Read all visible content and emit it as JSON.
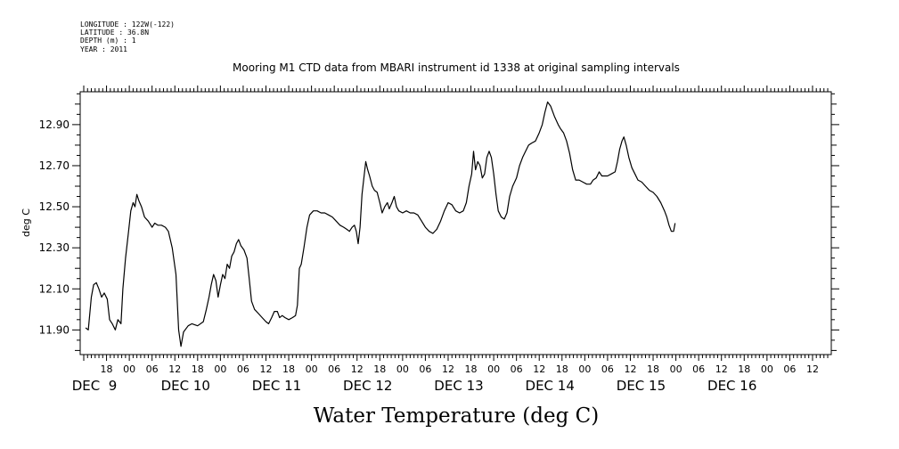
{
  "meta": {
    "longitude": "LONGITUDE : 122W(-122)",
    "latitude": "LATITUDE : 36.8N",
    "depth": "DEPTH (m) : 1",
    "year": "YEAR : 2011"
  },
  "chart_data": {
    "type": "line",
    "title": "Mooring M1 CTD data from MBARI instrument id 1338 at original sampling intervals",
    "ylabel": "deg C",
    "xlabel": "Water Temperature (deg C)",
    "x_unit": "hours since DEC 8 12:00, 2011",
    "xlim": [
      0,
      196
    ],
    "ylim": [
      11.78,
      13.06
    ],
    "yticks": [
      11.9,
      12.1,
      12.3,
      12.5,
      12.7,
      12.9
    ],
    "ytick_labels": [
      "11.90",
      "12.10",
      "12.30",
      "12.50",
      "12.70",
      "12.90"
    ],
    "hour_ticks": [
      {
        "x": 6,
        "label": "18"
      },
      {
        "x": 12,
        "label": "00"
      },
      {
        "x": 18,
        "label": "06"
      },
      {
        "x": 24,
        "label": "12"
      },
      {
        "x": 30,
        "label": "18"
      },
      {
        "x": 36,
        "label": "00"
      },
      {
        "x": 42,
        "label": "06"
      },
      {
        "x": 48,
        "label": "12"
      },
      {
        "x": 54,
        "label": "18"
      },
      {
        "x": 60,
        "label": "00"
      },
      {
        "x": 66,
        "label": "06"
      },
      {
        "x": 72,
        "label": "12"
      },
      {
        "x": 78,
        "label": "18"
      },
      {
        "x": 84,
        "label": "00"
      },
      {
        "x": 90,
        "label": "06"
      },
      {
        "x": 96,
        "label": "12"
      },
      {
        "x": 102,
        "label": "18"
      },
      {
        "x": 108,
        "label": "00"
      },
      {
        "x": 114,
        "label": "06"
      },
      {
        "x": 120,
        "label": "12"
      },
      {
        "x": 126,
        "label": "18"
      },
      {
        "x": 132,
        "label": "00"
      },
      {
        "x": 138,
        "label": "06"
      },
      {
        "x": 144,
        "label": "12"
      },
      {
        "x": 150,
        "label": "18"
      },
      {
        "x": 156,
        "label": "00"
      },
      {
        "x": 162,
        "label": "06"
      },
      {
        "x": 168,
        "label": "12"
      },
      {
        "x": 174,
        "label": "18"
      },
      {
        "x": 180,
        "label": "00"
      },
      {
        "x": 186,
        "label": "06"
      },
      {
        "x": 192,
        "label": "12"
      }
    ],
    "day_labels": [
      {
        "x": 0,
        "label": "DEC  9"
      },
      {
        "x": 24,
        "label": "DEC 10"
      },
      {
        "x": 48,
        "label": "DEC 11"
      },
      {
        "x": 72,
        "label": "DEC 12"
      },
      {
        "x": 96,
        "label": "DEC 13"
      },
      {
        "x": 120,
        "label": "DEC 14"
      },
      {
        "x": 144,
        "label": "DEC 15"
      },
      {
        "x": 168,
        "label": "DEC 16"
      }
    ],
    "series": [
      {
        "points": [
          [
            0.5,
            11.91
          ],
          [
            1.2,
            11.9
          ],
          [
            2,
            12.06
          ],
          [
            2.6,
            12.12
          ],
          [
            3.3,
            12.13
          ],
          [
            4,
            12.1
          ],
          [
            4.7,
            12.06
          ],
          [
            5.4,
            12.08
          ],
          [
            6.2,
            12.05
          ],
          [
            6.8,
            11.95
          ],
          [
            7.5,
            11.93
          ],
          [
            8.3,
            11.9
          ],
          [
            9,
            11.95
          ],
          [
            9.8,
            11.93
          ],
          [
            10.3,
            12.1
          ],
          [
            11,
            12.25
          ],
          [
            11.8,
            12.38
          ],
          [
            12.4,
            12.48
          ],
          [
            13,
            12.52
          ],
          [
            13.5,
            12.5
          ],
          [
            14,
            12.56
          ],
          [
            14.5,
            12.53
          ],
          [
            15.2,
            12.5
          ],
          [
            16,
            12.45
          ],
          [
            17,
            12.43
          ],
          [
            18,
            12.4
          ],
          [
            18.7,
            12.42
          ],
          [
            19.5,
            12.41
          ],
          [
            20.5,
            12.41
          ],
          [
            21.5,
            12.4
          ],
          [
            22.3,
            12.38
          ],
          [
            23.3,
            12.3
          ],
          [
            24.3,
            12.17
          ],
          [
            25,
            11.9
          ],
          [
            25.6,
            11.82
          ],
          [
            26.3,
            11.89
          ],
          [
            27.5,
            11.92
          ],
          [
            28.5,
            11.93
          ],
          [
            30,
            11.92
          ],
          [
            31.5,
            11.94
          ],
          [
            32.3,
            12
          ],
          [
            33,
            12.06
          ],
          [
            33.6,
            12.12
          ],
          [
            34.2,
            12.17
          ],
          [
            34.8,
            12.14
          ],
          [
            35.4,
            12.06
          ],
          [
            36,
            12.12
          ],
          [
            36.6,
            12.17
          ],
          [
            37.2,
            12.15
          ],
          [
            37.8,
            12.22
          ],
          [
            38.4,
            12.2
          ],
          [
            39,
            12.26
          ],
          [
            39.6,
            12.28
          ],
          [
            40.2,
            12.32
          ],
          [
            40.8,
            12.34
          ],
          [
            41.4,
            12.31
          ],
          [
            42.2,
            12.29
          ],
          [
            43,
            12.25
          ],
          [
            43.6,
            12.15
          ],
          [
            44.2,
            12.04
          ],
          [
            45,
            12
          ],
          [
            46,
            11.98
          ],
          [
            47,
            11.96
          ],
          [
            48,
            11.94
          ],
          [
            48.7,
            11.93
          ],
          [
            49.5,
            11.96
          ],
          [
            50.2,
            11.99
          ],
          [
            51,
            11.99
          ],
          [
            51.6,
            11.96
          ],
          [
            52.3,
            11.97
          ],
          [
            53,
            11.96
          ],
          [
            54,
            11.95
          ],
          [
            55,
            11.96
          ],
          [
            55.8,
            11.97
          ],
          [
            56.3,
            12.02
          ],
          [
            56.8,
            12.2
          ],
          [
            57.3,
            12.22
          ],
          [
            58,
            12.3
          ],
          [
            58.8,
            12.4
          ],
          [
            59.5,
            12.46
          ],
          [
            60.5,
            12.48
          ],
          [
            61.5,
            12.48
          ],
          [
            62.5,
            12.47
          ],
          [
            63.5,
            12.47
          ],
          [
            64.5,
            12.46
          ],
          [
            65.5,
            12.45
          ],
          [
            66.5,
            12.43
          ],
          [
            67.5,
            12.41
          ],
          [
            68.5,
            12.4
          ],
          [
            69.3,
            12.39
          ],
          [
            70,
            12.38
          ],
          [
            70.7,
            12.4
          ],
          [
            71.3,
            12.41
          ],
          [
            71.8,
            12.38
          ],
          [
            72.3,
            12.32
          ],
          [
            72.8,
            12.4
          ],
          [
            73.3,
            12.56
          ],
          [
            73.8,
            12.64
          ],
          [
            74.3,
            12.72
          ],
          [
            74.8,
            12.68
          ],
          [
            75.3,
            12.65
          ],
          [
            76,
            12.6
          ],
          [
            76.6,
            12.58
          ],
          [
            77.3,
            12.57
          ],
          [
            78,
            12.52
          ],
          [
            78.6,
            12.47
          ],
          [
            79.3,
            12.5
          ],
          [
            80,
            12.52
          ],
          [
            80.5,
            12.49
          ],
          [
            81.2,
            12.52
          ],
          [
            81.8,
            12.55
          ],
          [
            82.4,
            12.5
          ],
          [
            83,
            12.48
          ],
          [
            84,
            12.47
          ],
          [
            85,
            12.48
          ],
          [
            86,
            12.47
          ],
          [
            87,
            12.47
          ],
          [
            88,
            12.46
          ],
          [
            89,
            12.43
          ],
          [
            90,
            12.4
          ],
          [
            91,
            12.38
          ],
          [
            92,
            12.37
          ],
          [
            93,
            12.39
          ],
          [
            94,
            12.43
          ],
          [
            95,
            12.48
          ],
          [
            96,
            12.52
          ],
          [
            97,
            12.51
          ],
          [
            98,
            12.48
          ],
          [
            99,
            12.47
          ],
          [
            100,
            12.48
          ],
          [
            100.8,
            12.52
          ],
          [
            101.5,
            12.6
          ],
          [
            102.2,
            12.66
          ],
          [
            102.7,
            12.77
          ],
          [
            103.2,
            12.68
          ],
          [
            103.8,
            12.72
          ],
          [
            104.4,
            12.7
          ],
          [
            105,
            12.64
          ],
          [
            105.6,
            12.66
          ],
          [
            106.2,
            12.74
          ],
          [
            106.8,
            12.77
          ],
          [
            107.4,
            12.74
          ],
          [
            108,
            12.66
          ],
          [
            108.6,
            12.56
          ],
          [
            109.2,
            12.48
          ],
          [
            110,
            12.45
          ],
          [
            110.8,
            12.44
          ],
          [
            111.5,
            12.47
          ],
          [
            112.2,
            12.55
          ],
          [
            113,
            12.6
          ],
          [
            114,
            12.64
          ],
          [
            114.8,
            12.7
          ],
          [
            115.6,
            12.74
          ],
          [
            116.4,
            12.77
          ],
          [
            117.2,
            12.8
          ],
          [
            118,
            12.81
          ],
          [
            119,
            12.82
          ],
          [
            120,
            12.86
          ],
          [
            120.8,
            12.9
          ],
          [
            121.5,
            12.96
          ],
          [
            122.2,
            13.01
          ],
          [
            123,
            12.99
          ],
          [
            124,
            12.94
          ],
          [
            125,
            12.9
          ],
          [
            125.6,
            12.88
          ],
          [
            126.4,
            12.86
          ],
          [
            127.2,
            12.82
          ],
          [
            128,
            12.76
          ],
          [
            128.8,
            12.68
          ],
          [
            129.6,
            12.63
          ],
          [
            130.5,
            12.63
          ],
          [
            131.5,
            12.62
          ],
          [
            132.5,
            12.61
          ],
          [
            133.5,
            12.61
          ],
          [
            134.2,
            12.63
          ],
          [
            135,
            12.64
          ],
          [
            135.8,
            12.67
          ],
          [
            136.5,
            12.65
          ],
          [
            137.2,
            12.65
          ],
          [
            138,
            12.65
          ],
          [
            139,
            12.66
          ],
          [
            140,
            12.67
          ],
          [
            140.6,
            12.72
          ],
          [
            141.2,
            12.78
          ],
          [
            141.8,
            12.82
          ],
          [
            142.3,
            12.84
          ],
          [
            142.9,
            12.8
          ],
          [
            143.6,
            12.74
          ],
          [
            144.4,
            12.69
          ],
          [
            145.2,
            12.66
          ],
          [
            146,
            12.63
          ],
          [
            147,
            12.62
          ],
          [
            148,
            12.6
          ],
          [
            149,
            12.58
          ],
          [
            150,
            12.57
          ],
          [
            151,
            12.55
          ],
          [
            152,
            12.52
          ],
          [
            153,
            12.48
          ],
          [
            153.6,
            12.45
          ],
          [
            154.2,
            12.41
          ],
          [
            154.8,
            12.38
          ],
          [
            155.4,
            12.38
          ],
          [
            155.8,
            12.42
          ]
        ]
      }
    ]
  }
}
